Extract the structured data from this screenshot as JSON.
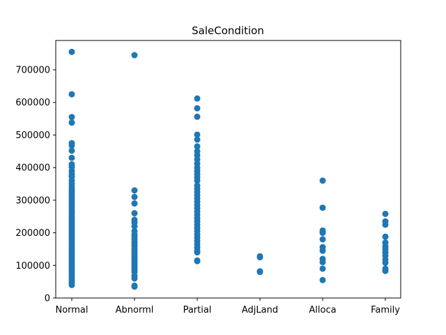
{
  "chart_data": {
    "type": "scatter",
    "title": "SaleCondition",
    "xlabel": "",
    "ylabel": "",
    "categories": [
      "Normal",
      "Abnorml",
      "Partial",
      "AdjLand",
      "Alloca",
      "Family"
    ],
    "ylim": [
      0,
      790000
    ],
    "yticks": [
      0,
      100000,
      200000,
      300000,
      400000,
      500000,
      600000,
      700000
    ],
    "ytick_labels": [
      "0",
      "100000",
      "200000",
      "300000",
      "400000",
      "500000",
      "600000",
      "700000"
    ],
    "grid": false,
    "marker_color": "#1f77b4",
    "points": {
      "Normal": [
        755000,
        625000,
        555000,
        538000,
        475000,
        468000,
        452000,
        430000,
        410000,
        402000,
        390000,
        380000,
        372000,
        360000,
        350000,
        340000,
        332000,
        325000,
        318000,
        310000,
        302000,
        295000,
        288000,
        280000,
        272000,
        265000,
        258000,
        250000,
        243000,
        236000,
        229000,
        222000,
        215000,
        208000,
        201000,
        194000,
        187000,
        180000,
        173000,
        166000,
        159000,
        152000,
        145000,
        138000,
        131000,
        124000,
        117000,
        110000,
        103000,
        96000,
        89000,
        82000,
        75000,
        68000,
        61000,
        54000,
        47000,
        40000
      ],
      "Abnorml": [
        745000,
        330000,
        310000,
        290000,
        260000,
        240000,
        232000,
        220000,
        205000,
        195000,
        188000,
        180000,
        172000,
        165000,
        158000,
        150000,
        143000,
        136000,
        129000,
        122000,
        115000,
        108000,
        101000,
        94000,
        87000,
        80000,
        68000,
        60000,
        38000,
        35000
      ],
      "Partial": [
        612000,
        582000,
        556000,
        501000,
        486000,
        465000,
        450000,
        438000,
        425000,
        412000,
        400000,
        390000,
        380000,
        370000,
        360000,
        345000,
        335000,
        325000,
        315000,
        305000,
        295000,
        285000,
        275000,
        265000,
        255000,
        245000,
        235000,
        225000,
        215000,
        205000,
        195000,
        185000,
        175000,
        165000,
        155000,
        145000,
        140000,
        115000,
        113000
      ],
      "AdjLand": [
        128000,
        125000,
        82000,
        80000
      ],
      "Alloca": [
        360000,
        277000,
        207000,
        200000,
        180000,
        156000,
        145000,
        120000,
        110000,
        90000,
        55000
      ],
      "Family": [
        258000,
        235000,
        225000,
        188000,
        170000,
        158000,
        150000,
        140000,
        130000,
        118000,
        108000,
        90000,
        83000
      ]
    }
  }
}
